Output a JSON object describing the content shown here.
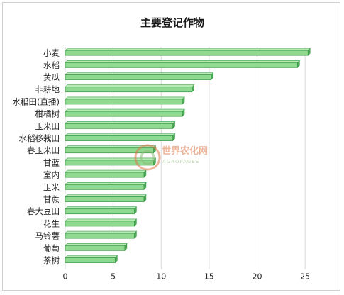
{
  "chart_data": {
    "type": "bar",
    "orientation": "horizontal",
    "title": "主要登记作物",
    "categories": [
      "小麦",
      "水稻",
      "黄瓜",
      "非耕地",
      "水稻田(直播)",
      "柑橘树",
      "玉米田",
      "水稻移栽田",
      "春玉米田",
      "甘蓝",
      "室内",
      "玉米",
      "甘蔗",
      "春大豆田",
      "花生",
      "马铃薯",
      "葡萄",
      "茶树"
    ],
    "values": [
      25.3,
      24.2,
      15.2,
      13.2,
      12.2,
      12.2,
      11.2,
      11.2,
      9.2,
      9.2,
      8.2,
      8.2,
      8.2,
      7.2,
      7.2,
      7.2,
      6.2,
      5.2
    ],
    "xticks": [
      0,
      5,
      10,
      15,
      20,
      25
    ],
    "xlim": [
      0,
      27.5
    ],
    "grid": true,
    "bar_color": "#8fd990",
    "bar_edge_color": "#3f9e4a"
  },
  "watermark": {
    "text": "世界农化网",
    "subtext": "AGROPAGES"
  }
}
